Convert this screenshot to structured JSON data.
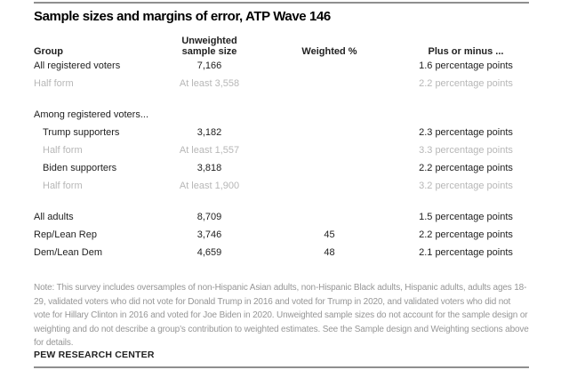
{
  "title": "Sample sizes and margins of error, ATP Wave 146",
  "colors": {
    "text": "#222222",
    "muted_row": "#b7b7b7",
    "note_text": "#969696",
    "divider": "#8f8f8f"
  },
  "table": {
    "headers": {
      "group": "Group",
      "unweighted": "Unweighted\nsample size",
      "weighted": "Weighted %",
      "moe": "Plus or minus ..."
    },
    "rows": [
      {
        "group": "All registered voters",
        "unweighted": "7,166",
        "weighted": "",
        "moe": "1.6 percentage points"
      },
      {
        "group": "Half form",
        "unweighted": "At least 3,558",
        "weighted": "",
        "moe": "2.2 percentage points"
      },
      {
        "group": "Among registered voters...",
        "unweighted": "",
        "weighted": "",
        "moe": ""
      },
      {
        "group": "Trump supporters",
        "unweighted": "3,182",
        "weighted": "",
        "moe": "2.3 percentage points"
      },
      {
        "group": "Half form",
        "unweighted": "At least 1,557",
        "weighted": "",
        "moe": "3.3 percentage points"
      },
      {
        "group": "Biden supporters",
        "unweighted": "3,818",
        "weighted": "",
        "moe": "2.2 percentage points"
      },
      {
        "group": "Half form",
        "unweighted": "At least 1,900",
        "weighted": "",
        "moe": "3.2 percentage points"
      },
      {
        "group": "All adults",
        "unweighted": "8,709",
        "weighted": "",
        "moe": "1.5 percentage points"
      },
      {
        "group": "Rep/Lean Rep",
        "unweighted": "3,746",
        "weighted": "45",
        "moe": "2.2 percentage points"
      },
      {
        "group": "Dem/Lean Dem",
        "unweighted": "4,659",
        "weighted": "48",
        "moe": "2.1 percentage points"
      }
    ]
  },
  "note": "Note: This survey includes oversamples of non-Hispanic Asian adults, non-Hispanic Black adults, Hispanic adults, adults ages 18-29, validated voters who did not vote for Donald Trump in 2016 and voted for Trump in 2020, and validated voters who did not vote for Hillary Clinton in 2016 and voted for Joe Biden in 2020. Unweighted sample sizes do not account for the sample design or weighting and do not describe a group’s contribution to weighted estimates. See the Sample design and Weighting sections above for details.",
  "source": "PEW RESEARCH CENTER"
}
